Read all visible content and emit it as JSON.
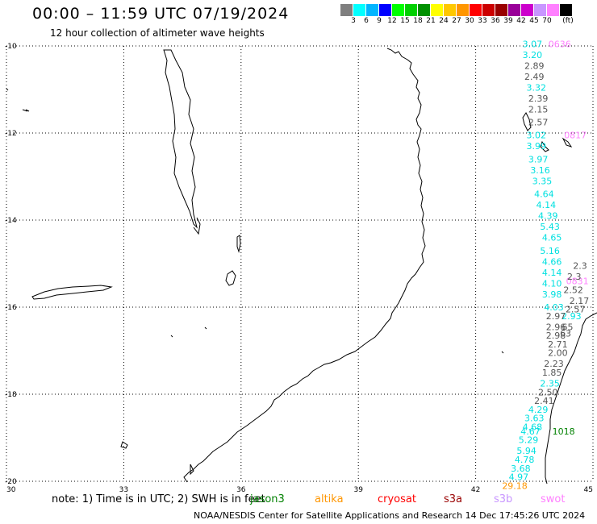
{
  "header": {
    "title": "00:00 – 11:59 UTC 07/19/2024",
    "subtitle": "12 hour collection of altimeter wave heights"
  },
  "colorbar": {
    "colors": [
      "#7f7f7f",
      "#00ffff",
      "#00b5ff",
      "#0000ff",
      "#00ff00",
      "#00d000",
      "#009000",
      "#ffff00",
      "#ffc800",
      "#ff9600",
      "#ff0000",
      "#cc0000",
      "#990000",
      "#990099",
      "#cc00cc",
      "#c896ff",
      "#ff80ff",
      "#000000"
    ],
    "labels": [
      "3",
      "6",
      "9",
      "12",
      "15",
      "18",
      "21",
      "24",
      "27",
      "30",
      "33",
      "36",
      "39",
      "42",
      "45",
      "70"
    ],
    "unit": "(ft)"
  },
  "map": {
    "lon_range": [
      30,
      45
    ],
    "lat_range": [
      -20,
      -10
    ],
    "lon_ticks": [
      "30",
      "33",
      "36",
      "39",
      "42",
      "45"
    ],
    "lat_ticks": [
      "-10",
      "-12",
      "-14",
      "-16",
      "-18",
      "-20"
    ],
    "grid": "dotted",
    "observations": [
      {
        "lon": 43.45,
        "lat": -9.95,
        "text": "3.07",
        "color": "#00e0e0"
      },
      {
        "lon": 44.15,
        "lat": -9.95,
        "text": "0636",
        "color": "#ff80ff"
      },
      {
        "lon": 43.45,
        "lat": -10.2,
        "text": "3.20",
        "color": "#00e0e0"
      },
      {
        "lon": 43.5,
        "lat": -10.45,
        "text": "2.89",
        "color": "#555555"
      },
      {
        "lon": 43.5,
        "lat": -10.7,
        "text": "2.49",
        "color": "#555555"
      },
      {
        "lon": 43.55,
        "lat": -10.95,
        "text": "3.32",
        "color": "#00e0e0"
      },
      {
        "lon": 43.6,
        "lat": -11.2,
        "text": "2.39",
        "color": "#555555"
      },
      {
        "lon": 43.6,
        "lat": -11.45,
        "text": "2.15",
        "color": "#555555"
      },
      {
        "lon": 43.6,
        "lat": -11.75,
        "text": "2.57",
        "color": "#555555"
      },
      {
        "lon": 43.55,
        "lat": -12.05,
        "text": "3.02",
        "color": "#00e0e0"
      },
      {
        "lon": 44.55,
        "lat": -12.05,
        "text": "0817",
        "color": "#ff80ff"
      },
      {
        "lon": 43.55,
        "lat": -12.3,
        "text": "3.99",
        "color": "#00e0e0"
      },
      {
        "lon": 43.6,
        "lat": -12.6,
        "text": "3.97",
        "color": "#00e0e0"
      },
      {
        "lon": 43.65,
        "lat": -12.85,
        "text": "3.16",
        "color": "#00e0e0"
      },
      {
        "lon": 43.7,
        "lat": -13.1,
        "text": "3.35",
        "color": "#00e0e0"
      },
      {
        "lon": 43.75,
        "lat": -13.4,
        "text": "4.64",
        "color": "#00e0e0"
      },
      {
        "lon": 43.8,
        "lat": -13.65,
        "text": "4.14",
        "color": "#00e0e0"
      },
      {
        "lon": 43.85,
        "lat": -13.9,
        "text": "4.39",
        "color": "#00e0e0"
      },
      {
        "lon": 43.9,
        "lat": -14.15,
        "text": "5.43",
        "color": "#00e0e0"
      },
      {
        "lon": 43.95,
        "lat": -14.4,
        "text": "4.65",
        "color": "#00e0e0"
      },
      {
        "lon": 43.9,
        "lat": -14.7,
        "text": "5.16",
        "color": "#00e0e0"
      },
      {
        "lon": 43.95,
        "lat": -14.95,
        "text": "4.66",
        "color": "#00e0e0"
      },
      {
        "lon": 43.95,
        "lat": -15.2,
        "text": "4.14",
        "color": "#00e0e0"
      },
      {
        "lon": 43.95,
        "lat": -15.45,
        "text": "4.10",
        "color": "#00e0e0"
      },
      {
        "lon": 43.95,
        "lat": -15.7,
        "text": "3.98",
        "color": "#00e0e0"
      },
      {
        "lon": 44.0,
        "lat": -16.0,
        "text": "4.03",
        "color": "#00e0e0"
      },
      {
        "lon": 44.6,
        "lat": -15.4,
        "text": "0831",
        "color": "#ff80ff"
      },
      {
        "lon": 44.85,
        "lat": -15.05,
        "text": "2.3",
        "color": "#555555"
      },
      {
        "lon": 44.7,
        "lat": -15.3,
        "text": "2.3",
        "color": "#555555"
      },
      {
        "lon": 44.75,
        "lat": -15.6,
        "text": "2.52",
        "color": "#555555"
      },
      {
        "lon": 44.65,
        "lat": -15.85,
        "text": "2.17",
        "color": "#555555"
      },
      {
        "lon": 44.55,
        "lat": -16.05,
        "text": "2.57",
        "color": "#555555"
      },
      {
        "lon": 44.45,
        "lat": -16.2,
        "text": "2.93",
        "color": "#00e0e0"
      },
      {
        "lon": 44.05,
        "lat": -16.2,
        "text": "2.97",
        "color": "#555555"
      },
      {
        "lon": 44.05,
        "lat": -16.45,
        "text": "2.96",
        "color": "#555555"
      },
      {
        "lon": 44.35,
        "lat": -16.45,
        "text": "65",
        "color": "#555555"
      },
      {
        "lon": 44.05,
        "lat": -16.65,
        "text": "2.98",
        "color": "#555555"
      },
      {
        "lon": 44.3,
        "lat": -16.6,
        "text": "63",
        "color": "#555555"
      },
      {
        "lon": 44.1,
        "lat": -16.85,
        "text": "2.71",
        "color": "#555555"
      },
      {
        "lon": 44.1,
        "lat": -17.05,
        "text": "2.00",
        "color": "#555555"
      },
      {
        "lon": 44.0,
        "lat": -17.3,
        "text": "2.23",
        "color": "#555555"
      },
      {
        "lon": 43.95,
        "lat": -17.5,
        "text": "1.85",
        "color": "#555555"
      },
      {
        "lon": 43.9,
        "lat": -17.75,
        "text": "2.35",
        "color": "#00e0e0"
      },
      {
        "lon": 43.85,
        "lat": -17.95,
        "text": "2.50",
        "color": "#555555"
      },
      {
        "lon": 43.75,
        "lat": -18.15,
        "text": "2.41",
        "color": "#555555"
      },
      {
        "lon": 43.6,
        "lat": -18.35,
        "text": "4.29",
        "color": "#00e0e0"
      },
      {
        "lon": 43.5,
        "lat": -18.55,
        "text": "3.63",
        "color": "#00e0e0"
      },
      {
        "lon": 43.45,
        "lat": -18.75,
        "text": "4.68",
        "color": "#00e0e0"
      },
      {
        "lon": 43.4,
        "lat": -18.85,
        "text": "4.67",
        "color": "#00e0e0"
      },
      {
        "lon": 44.25,
        "lat": -18.85,
        "text": "1018",
        "color": "#008000"
      },
      {
        "lon": 43.35,
        "lat": -19.05,
        "text": "5.29",
        "color": "#00e0e0"
      },
      {
        "lon": 43.3,
        "lat": -19.3,
        "text": "5.94",
        "color": "#00e0e0"
      },
      {
        "lon": 43.25,
        "lat": -19.5,
        "text": "4.78",
        "color": "#00e0e0"
      },
      {
        "lon": 43.15,
        "lat": -19.7,
        "text": "3.68",
        "color": "#00e0e0"
      },
      {
        "lon": 43.1,
        "lat": -19.9,
        "text": "4.97",
        "color": "#00e0e0"
      },
      {
        "lon": 43.0,
        "lat": -20.1,
        "text": "29.18",
        "color": "#ff9600"
      }
    ]
  },
  "note": "note:  1) Time is in UTC; 2) SWH is in feet",
  "legend": [
    {
      "label": "jason3",
      "color": "#008000"
    },
    {
      "label": "altika",
      "color": "#ff9600"
    },
    {
      "label": "cryosat",
      "color": "#ff0000"
    },
    {
      "label": "s3a",
      "color": "#990000"
    },
    {
      "label": "s3b",
      "color": "#c896ff"
    },
    {
      "label": "swot",
      "color": "#ff80ff"
    }
  ],
  "footer": "NOAA/NESDIS Center for Satellite Applications and Research    14 Dec 17:45:26 UTC 2024"
}
